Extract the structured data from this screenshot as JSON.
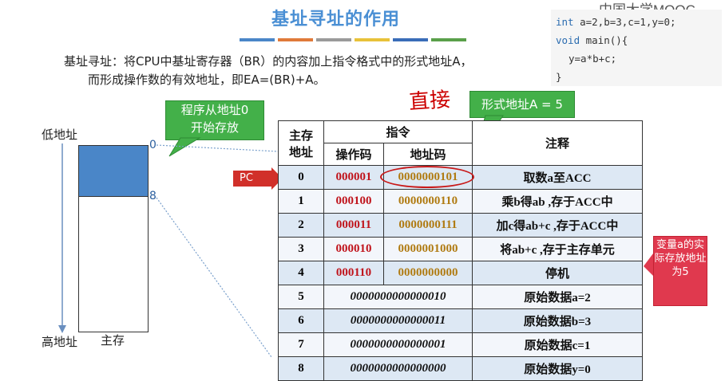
{
  "title": "基址寻址的作用",
  "color_bar": [
    "#4a86c8",
    "#e07a3a",
    "#9a9a9a",
    "#e8c23a",
    "#3a6db8",
    "#5aa04a"
  ],
  "logo": "中国大学MOOC",
  "code": {
    "line1_kw": "int",
    "line1_rest": " a=2,b=3,c=1,y=0;",
    "line2_kw": "void",
    "line2_rest": " main(){",
    "line3": "y=a*b+c;",
    "line4": "}"
  },
  "description": {
    "line1": "基址寻址：将CPU中基址寄存器（BR）的内容加上指令格式中的形式地址A，",
    "line2": "而形成操作数的有效地址，即EA=(BR)+A。"
  },
  "handwriting": "直接",
  "callouts": {
    "program_start_line1": "程序从地址0",
    "program_start_line2": "开始存放",
    "formal_address": "形式地址A = 5",
    "variable_a": "变量a的实际存放地址为5"
  },
  "memory": {
    "low_address": "低地址",
    "high_address": "高地址",
    "label": "主存",
    "mark_0": "0",
    "mark_8": "8"
  },
  "pc_label": "PC",
  "table": {
    "header_addr_line1": "主存",
    "header_addr_line2": "地址",
    "header_instruction": "指令",
    "header_opcode": "操作码",
    "header_address_code": "地址码",
    "header_note": "注释",
    "rows": [
      {
        "addr": "0",
        "opcode": "000001",
        "address": "0000000101",
        "note": "取数a至ACC"
      },
      {
        "addr": "1",
        "opcode": "000100",
        "address": "0000000110",
        "note": "乘b得ab ,存于ACC中"
      },
      {
        "addr": "2",
        "opcode": "000011",
        "address": "0000000111",
        "note": "加c得ab+c ,存于ACC中"
      },
      {
        "addr": "3",
        "opcode": "000010",
        "address": "0000001000",
        "note": "将ab+c ,存于主存单元"
      },
      {
        "addr": "4",
        "opcode": "000110",
        "address": "0000000000",
        "note": "停机"
      }
    ],
    "data_rows": [
      {
        "addr": "5",
        "data": "0000000000000010",
        "note": "原始数据a=2"
      },
      {
        "addr": "6",
        "data": "0000000000000011",
        "note": "原始数据b=3"
      },
      {
        "addr": "7",
        "data": "0000000000000001",
        "note": "原始数据c=1"
      },
      {
        "addr": "8",
        "data": "0000000000000000",
        "note": "原始数据y=0"
      }
    ]
  }
}
